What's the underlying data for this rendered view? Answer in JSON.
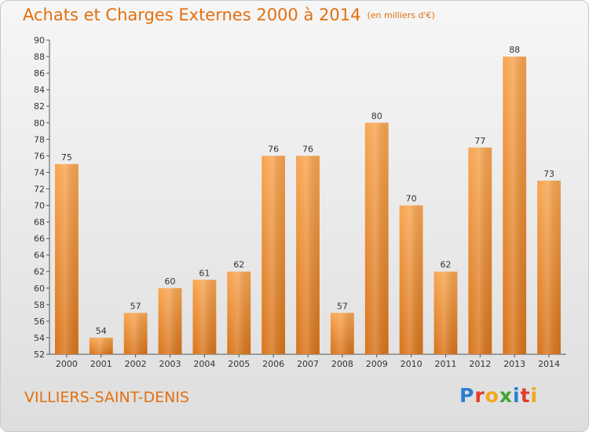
{
  "header": {
    "title": "Achats et Charges Externes 2000 à 2014",
    "subtitle": "(en milliers d'€)"
  },
  "footer": {
    "commune": "VILLIERS-SAINT-DENIS",
    "logo": {
      "letters": [
        "P",
        "r",
        "o",
        "x",
        "i",
        "t",
        "i"
      ],
      "colors": [
        "#2a7fd4",
        "#e23b2e",
        "#f2a71b",
        "#3fa535",
        "#2a7fd4",
        "#e23b2e",
        "#f2a71b"
      ]
    }
  },
  "colors": {
    "bar_light": "#f8a550",
    "bar_dark": "#d8741a",
    "accent": "#e2700f"
  },
  "chart_data": {
    "type": "bar",
    "categories": [
      "2000",
      "2001",
      "2002",
      "2003",
      "2004",
      "2005",
      "2006",
      "2007",
      "2008",
      "2009",
      "2010",
      "2011",
      "2012",
      "2013",
      "2014"
    ],
    "values": [
      75,
      54,
      57,
      60,
      61,
      62,
      76,
      76,
      57,
      80,
      70,
      62,
      77,
      88,
      73
    ],
    "title": "Achats et Charges Externes 2000 à 2014",
    "subtitle": "(en milliers d'€)",
    "ylim": [
      52,
      90
    ],
    "ytick_step": 2,
    "grid": false,
    "data_labels": true
  }
}
